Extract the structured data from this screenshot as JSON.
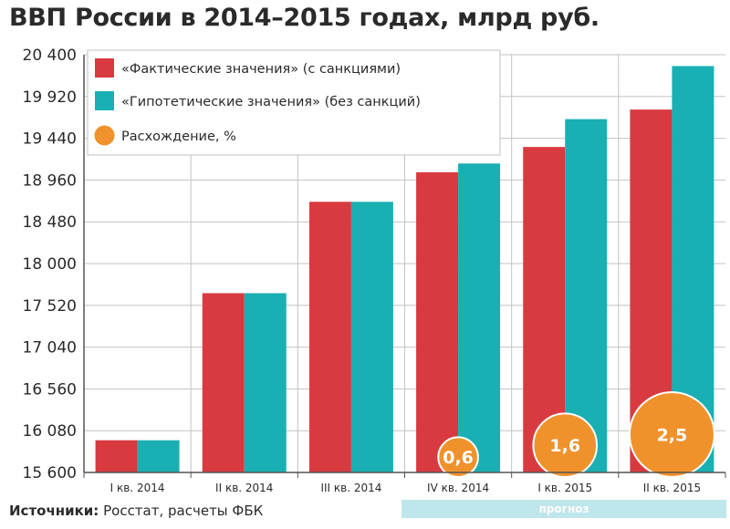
{
  "chart_data": {
    "type": "bar",
    "title": "ВВП России в 2014–2015 годах, млрд руб.",
    "categories": [
      "I кв. 2014",
      "II кв. 2014",
      "III кв. 2014",
      "IV кв. 2014",
      "I кв. 2015",
      "II кв. 2015"
    ],
    "series": [
      {
        "name": "«Фактические значения» (с санкциями)",
        "color": "#d83a40",
        "values": [
          15970,
          17660,
          18710,
          19050,
          19340,
          19770
        ]
      },
      {
        "name": "«Гипотетические значения» (без санкций)",
        "color": "#1aafb2",
        "values": [
          15970,
          17660,
          18710,
          19150,
          19660,
          20270
        ]
      }
    ],
    "divergence": {
      "name": "Расхождение, %",
      "color": "#f0922c",
      "points": [
        {
          "category": "IV кв. 2014",
          "label": "0,6",
          "value": 0.6
        },
        {
          "category": "I кв. 2015",
          "label": "1,6",
          "value": 1.6
        },
        {
          "category": "II кв. 2015",
          "label": "2,5",
          "value": 2.5
        }
      ]
    },
    "yticks": [
      "15 600",
      "16 080",
      "16 560",
      "17 040",
      "17 520",
      "18 000",
      "18 480",
      "18 960",
      "19 440",
      "19 920",
      "20 400"
    ],
    "ylim": [
      15600,
      20400
    ],
    "xlabel": "",
    "ylabel": "",
    "grid": true,
    "legend": "top-left"
  },
  "source": {
    "label": "Источники:",
    "text": "Росстат, расчеты ФБК"
  },
  "forecast_label": "прогноз"
}
